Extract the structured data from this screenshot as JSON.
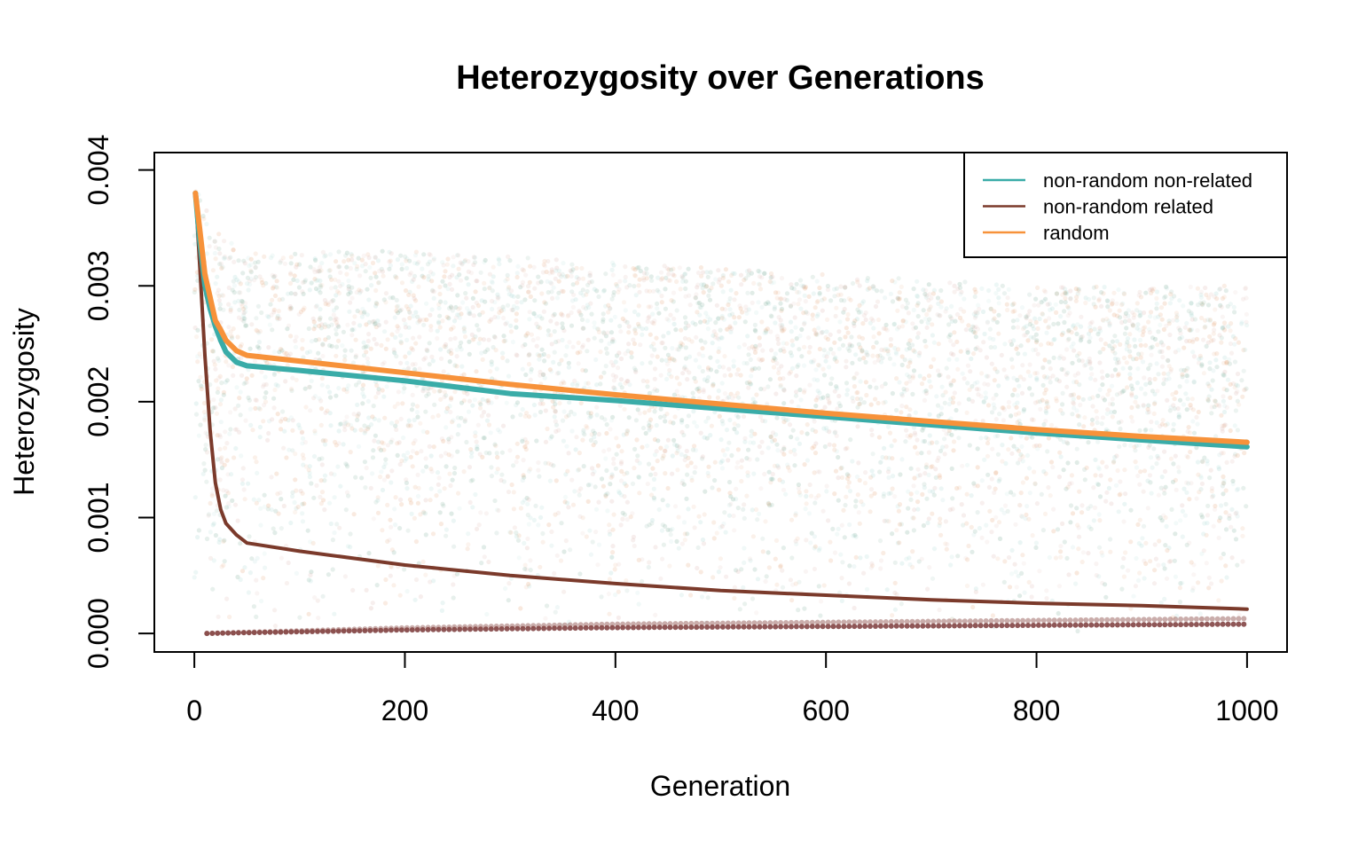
{
  "chart_data": {
    "type": "line",
    "title": "Heterozygosity over Generations",
    "xlabel": "Generation",
    "ylabel": "Heterozygosity",
    "xlim": [
      -38,
      1038
    ],
    "ylim": [
      -0.00016,
      0.00415
    ],
    "x_ticks": [
      0,
      200,
      400,
      600,
      800,
      1000
    ],
    "x_tick_labels": [
      "0",
      "200",
      "400",
      "600",
      "800",
      "1000"
    ],
    "y_ticks": [
      0.0,
      0.001,
      0.002,
      0.003,
      0.004
    ],
    "y_tick_labels": [
      "0.000",
      "0.001",
      "0.002",
      "0.003",
      "0.004"
    ],
    "legend_position": "top-right",
    "grid": false,
    "series": [
      {
        "name": "non-random non-related",
        "color": "#3aaca8",
        "x": [
          1,
          5,
          10,
          15,
          20,
          25,
          30,
          40,
          50,
          100,
          200,
          300,
          400,
          500,
          600,
          700,
          800,
          900,
          1000
        ],
        "values": [
          0.0038,
          0.0034,
          0.003,
          0.0028,
          0.00265,
          0.00253,
          0.00243,
          0.00234,
          0.00231,
          0.00227,
          0.00218,
          0.00207,
          0.00201,
          0.00194,
          0.00187,
          0.0018,
          0.00173,
          0.00167,
          0.00161
        ]
      },
      {
        "name": "non-random related",
        "color": "#7b3a2b",
        "x": [
          1,
          5,
          10,
          15,
          20,
          25,
          30,
          40,
          50,
          100,
          200,
          300,
          400,
          500,
          600,
          700,
          800,
          900,
          1000
        ],
        "values": [
          0.0038,
          0.0032,
          0.0024,
          0.00175,
          0.0013,
          0.00107,
          0.00095,
          0.00085,
          0.00078,
          0.00071,
          0.00059,
          0.0005,
          0.00043,
          0.00037,
          0.00033,
          0.00029,
          0.00026,
          0.00024,
          0.00021
        ]
      },
      {
        "name": "random",
        "color": "#f7923a",
        "x": [
          1,
          5,
          10,
          15,
          20,
          25,
          30,
          40,
          50,
          100,
          200,
          300,
          400,
          500,
          600,
          700,
          800,
          900,
          1000
        ],
        "values": [
          0.0038,
          0.0035,
          0.0031,
          0.0029,
          0.0027,
          0.00262,
          0.00253,
          0.00244,
          0.0024,
          0.00235,
          0.00225,
          0.00215,
          0.00206,
          0.00198,
          0.0019,
          0.00183,
          0.00176,
          0.0017,
          0.00165
        ]
      }
    ],
    "background_points": {
      "description_colors": [
        "#6fa58f",
        "#e39a6b",
        "#9fd3cf",
        "#d9b0a8"
      ],
      "upper_band_x": [
        0,
        20,
        50,
        200,
        400,
        600,
        800,
        1000
      ],
      "upper_band_top": [
        0.0039,
        0.0035,
        0.0033,
        0.0033,
        0.0032,
        0.0031,
        0.003,
        0.003
      ],
      "upper_band_bottom": [
        0.0,
        0.0,
        0.0,
        0.0,
        0.0,
        0.0,
        0.0,
        0.0
      ],
      "floor_x": [
        10,
        200,
        400,
        600,
        800,
        1000
      ],
      "floor_values": [
        0.0,
        3e-05,
        5e-05,
        6e-05,
        7e-05,
        8e-05
      ]
    }
  }
}
